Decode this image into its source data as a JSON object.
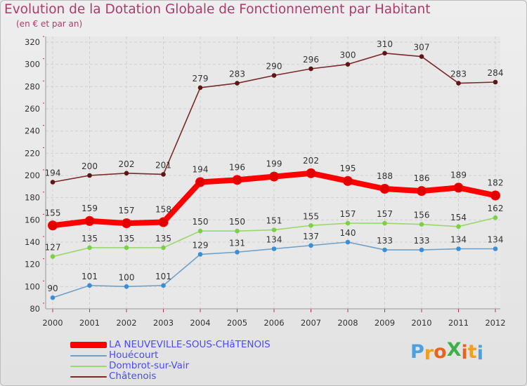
{
  "header": {
    "title": "Evolution de la Dotation Globale de Fonctionnement par Habitant",
    "subtitle": "(en € et par an)"
  },
  "logo": {
    "text": "ProXiti",
    "letters": [
      "P",
      "r",
      "o",
      "X",
      "i",
      "t",
      "i"
    ],
    "colors": [
      "#4aa0e0",
      "#f0a020",
      "#e8641e",
      "#3cb04a",
      "#e8641e",
      "#f0a020",
      "#4aa0e0"
    ]
  },
  "chart_data": {
    "type": "line",
    "title": "Evolution de la Dotation Globale de Fonctionnement par Habitant",
    "subtitle": "(en € et par an)",
    "xlabel": "",
    "ylabel": "",
    "x": [
      "2000",
      "2001",
      "2002",
      "2003",
      "2004",
      "2005",
      "2006",
      "2007",
      "2008",
      "2009",
      "2010",
      "2011",
      "2012"
    ],
    "ylim": [
      80,
      320
    ],
    "yticks": [
      80,
      100,
      120,
      140,
      160,
      180,
      200,
      220,
      240,
      260,
      280,
      300,
      320
    ],
    "grid": true,
    "legend_position": "bottom-left",
    "series": [
      {
        "name": "LA NEUVEVILLE-SOUS-CHâTENOIS",
        "color": "#ff0000",
        "marker": "#e00000",
        "emphasis": true,
        "values": [
          155,
          159,
          157,
          158,
          194,
          196,
          199,
          202,
          195,
          188,
          186,
          189,
          182
        ]
      },
      {
        "name": "Houécourt",
        "color": "#6fa0c8",
        "marker": "#3a8ed6",
        "emphasis": false,
        "values": [
          90,
          101,
          100,
          101,
          129,
          131,
          134,
          137,
          140,
          133,
          133,
          134,
          134
        ]
      },
      {
        "name": "Dombrot-sur-Vair",
        "color": "#98d96a",
        "marker": "#7cd044",
        "emphasis": false,
        "values": [
          127,
          135,
          135,
          135,
          150,
          150,
          151,
          155,
          157,
          157,
          156,
          154,
          162
        ]
      },
      {
        "name": "Châtenois",
        "color": "#7a2a2a",
        "marker": "#5e1515",
        "emphasis": false,
        "values": [
          194,
          200,
          202,
          201,
          279,
          283,
          290,
          296,
          300,
          310,
          307,
          283,
          284
        ]
      }
    ]
  }
}
